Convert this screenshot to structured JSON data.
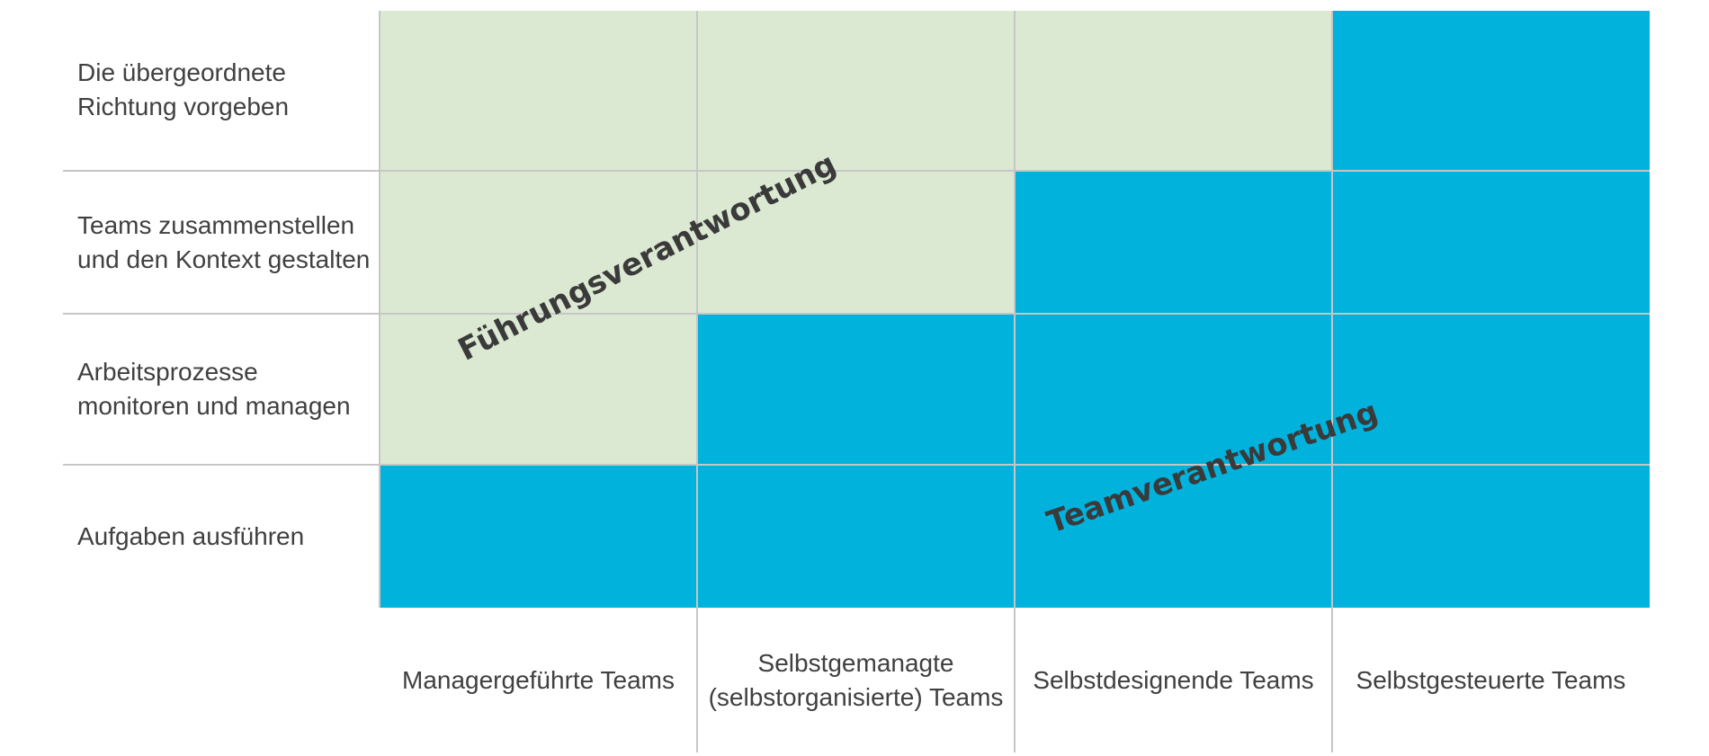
{
  "row_labels": [
    "Die übergeordnete Richtung vorgeben",
    "Teams zusammenstellen und den Kontext gestalten",
    "Arbeitsprozesse monitoren und managen",
    "Aufgaben ausführen"
  ],
  "column_labels": [
    "Managergeführte Teams",
    "Selbstgemanagte (selbstorganisierte) Teams",
    "Selbstdesignende Teams",
    "Selbstgesteuerte Teams"
  ],
  "zones": {
    "leadership": {
      "label": "Führungsverantwortung",
      "color": "#dbe8d2"
    },
    "team": {
      "label": "Teamverantwortung",
      "color": "#00b2dc"
    }
  },
  "team_responsibility_starts_at_row_by_column": [
    3,
    2,
    1,
    0
  ]
}
